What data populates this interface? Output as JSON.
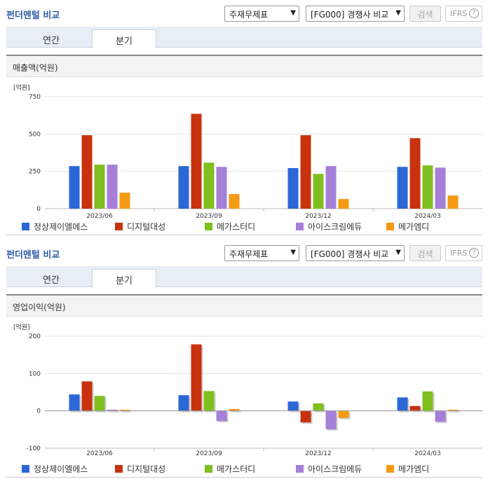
{
  "sections": [
    {
      "title": "펀더멘털 비교",
      "select1": "주재무제표",
      "select2": "[FG000] 경쟁사 비교",
      "search_label": "검색",
      "ifrs_label": "IFRS",
      "help_icon": "?",
      "tabs": [
        {
          "label": "연간"
        },
        {
          "label": "분기"
        }
      ],
      "active_tab": "분기",
      "chart_title": "매출액(억원)",
      "unit": "[억원]"
    },
    {
      "title": "펀더멘털 비교",
      "select1": "주재무제표",
      "select2": "[FG000] 경쟁사 비교",
      "search_label": "검색",
      "ifrs_label": "IFRS",
      "help_icon": "?",
      "tabs": [
        {
          "label": "연간"
        },
        {
          "label": "분기"
        }
      ],
      "active_tab": "분기",
      "chart_title": "영업이익(억원)",
      "unit": "[억원]"
    }
  ],
  "colors": {
    "정상제이엘에스": "#2b67d6",
    "디지털대성": "#c8320f",
    "메가스터디": "#7fbf1f",
    "아이스크림에듀": "#a67fd9",
    "메가엠디": "#f59a14"
  },
  "chart_data": [
    {
      "type": "bar",
      "title": "매출액(억원)",
      "ylabel": "[억원]",
      "categories": [
        "2023/06",
        "2023/09",
        "2023/12",
        "2024/03"
      ],
      "ylim": [
        0,
        750
      ],
      "yticks": [
        0,
        250,
        500,
        750
      ],
      "legend": "bottom",
      "grid": true,
      "series": [
        {
          "name": "정상제이엘에스",
          "values": [
            285,
            285,
            272,
            280
          ]
        },
        {
          "name": "디지털대성",
          "values": [
            492,
            635,
            492,
            472
          ]
        },
        {
          "name": "메가스터디",
          "values": [
            295,
            308,
            233,
            290
          ]
        },
        {
          "name": "아이스크림에듀",
          "values": [
            295,
            280,
            285,
            275
          ]
        },
        {
          "name": "메가엠디",
          "values": [
            107,
            98,
            65,
            88
          ]
        }
      ]
    },
    {
      "type": "bar",
      "title": "영업이익(억원)",
      "ylabel": "[억원]",
      "categories": [
        "2023/06",
        "2023/09",
        "2023/12",
        "2024/03"
      ],
      "ylim": [
        -100,
        200
      ],
      "yticks": [
        -100,
        0,
        100,
        200
      ],
      "legend": "bottom",
      "grid": true,
      "series": [
        {
          "name": "정상제이엘에스",
          "values": [
            44,
            42,
            25,
            36
          ]
        },
        {
          "name": "디지털대성",
          "values": [
            79,
            178,
            -31,
            13
          ]
        },
        {
          "name": "메가스터디",
          "values": [
            40,
            53,
            20,
            52
          ]
        },
        {
          "name": "아이스크림에듀",
          "values": [
            3,
            -27,
            -49,
            -29
          ]
        },
        {
          "name": "메가엠디",
          "values": [
            3,
            5,
            -19,
            3
          ]
        }
      ]
    }
  ]
}
